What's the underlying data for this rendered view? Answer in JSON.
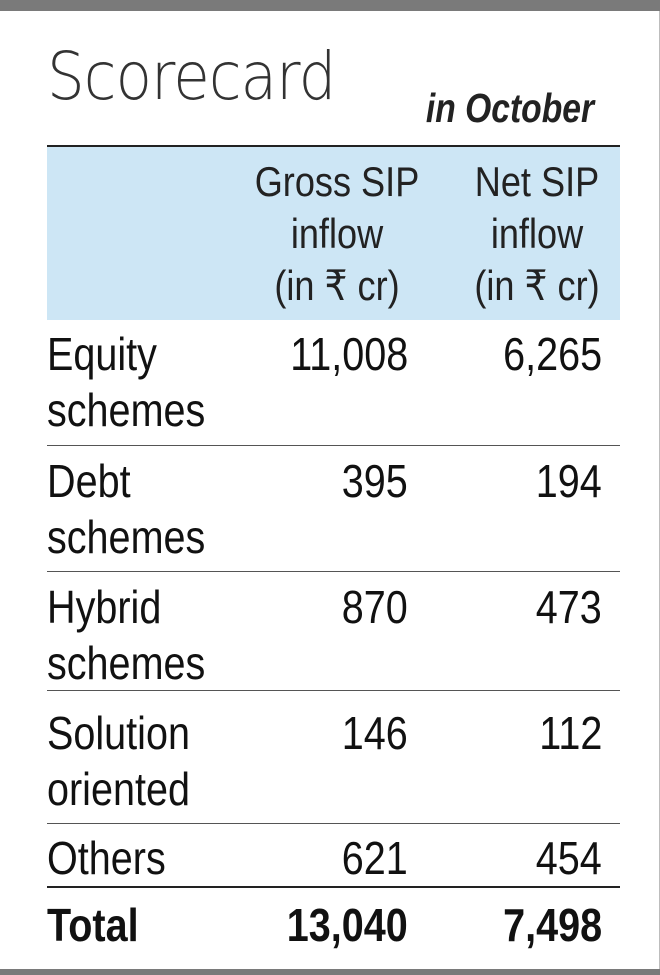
{
  "chart_data": {
    "type": "table",
    "title": "Scorecard",
    "subtitle": "in October",
    "columns": [
      {
        "line1": "Gross SIP",
        "line2": "inflow",
        "line3": "(in ₹ cr)"
      },
      {
        "line1": "Net SIP",
        "line2": "inflow",
        "line3": "(in ₹ cr)"
      }
    ],
    "rows": [
      {
        "label_line1": "Equity",
        "label_line2": "schemes",
        "gross": "11,008",
        "net": "6,265"
      },
      {
        "label_line1": "Debt",
        "label_line2": "schemes",
        "gross": "395",
        "net": "194"
      },
      {
        "label_line1": "Hybrid",
        "label_line2": "schemes",
        "gross": "870",
        "net": "473"
      },
      {
        "label_line1": "Solution",
        "label_line2": "oriented",
        "gross": "146",
        "net": "112"
      },
      {
        "label_line1": "Others",
        "label_line2": "",
        "gross": "621",
        "net": "454"
      }
    ],
    "total": {
      "label": "Total",
      "gross": "13,040",
      "net": "7,498"
    },
    "colors": {
      "header_background": "#cde6f5",
      "frame": "#7a7a7a"
    }
  }
}
